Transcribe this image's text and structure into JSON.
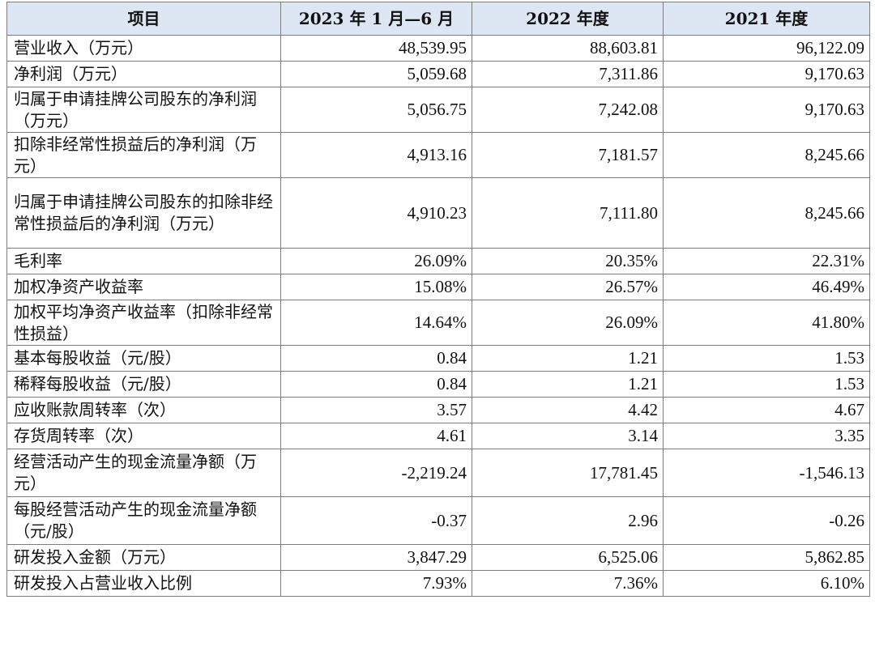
{
  "table": {
    "headers": [
      "项目",
      "2023 年 1 月—6 月",
      "2022 年度",
      "2021 年度"
    ],
    "rows": [
      {
        "label": "营业收入（万元）",
        "values": [
          "48,539.95",
          "88,603.81",
          "96,122.09"
        ]
      },
      {
        "label": "净利润（万元）",
        "values": [
          "5,059.68",
          "7,311.86",
          "9,170.63"
        ]
      },
      {
        "label": "归属于申请挂牌公司股东的净利润（万元）",
        "values": [
          "5,056.75",
          "7,242.08",
          "9,170.63"
        ]
      },
      {
        "label": "扣除非经常性损益后的净利润（万元）",
        "values": [
          "4,913.16",
          "7,181.57",
          "8,245.66"
        ]
      },
      {
        "label": "归属于申请挂牌公司股东的扣除非经常性损益后的净利润（万元）",
        "values": [
          "4,910.23",
          "7,111.80",
          "8,245.66"
        ]
      },
      {
        "label": "毛利率",
        "values": [
          "26.09%",
          "20.35%",
          "22.31%"
        ]
      },
      {
        "label": "加权净资产收益率",
        "values": [
          "15.08%",
          "26.57%",
          "46.49%"
        ]
      },
      {
        "label": "加权平均净资产收益率（扣除非经常性损益）",
        "values": [
          "14.64%",
          "26.09%",
          "41.80%"
        ]
      },
      {
        "label": "基本每股收益（元/股）",
        "values": [
          "0.84",
          "1.21",
          "1.53"
        ]
      },
      {
        "label": "稀释每股收益（元/股）",
        "values": [
          "0.84",
          "1.21",
          "1.53"
        ]
      },
      {
        "label": "应收账款周转率（次）",
        "values": [
          "3.57",
          "4.42",
          "4.67"
        ]
      },
      {
        "label": "存货周转率（次）",
        "values": [
          "4.61",
          "3.14",
          "3.35"
        ]
      },
      {
        "label": "经营活动产生的现金流量净额（万元）",
        "values": [
          "-2,219.24",
          "17,781.45",
          "-1,546.13"
        ]
      },
      {
        "label": "每股经营活动产生的现金流量净额（元/股）",
        "values": [
          "-0.37",
          "2.96",
          "-0.26"
        ]
      },
      {
        "label": "研发投入金额（万元）",
        "values": [
          "3,847.29",
          "6,525.06",
          "5,862.85"
        ]
      },
      {
        "label": "研发投入占营业收入比例",
        "values": [
          "7.93%",
          "7.36%",
          "6.10%"
        ]
      }
    ]
  },
  "colors": {
    "header_background": "#dde6f3",
    "border": "#7d7d7d",
    "text": "#111111"
  }
}
